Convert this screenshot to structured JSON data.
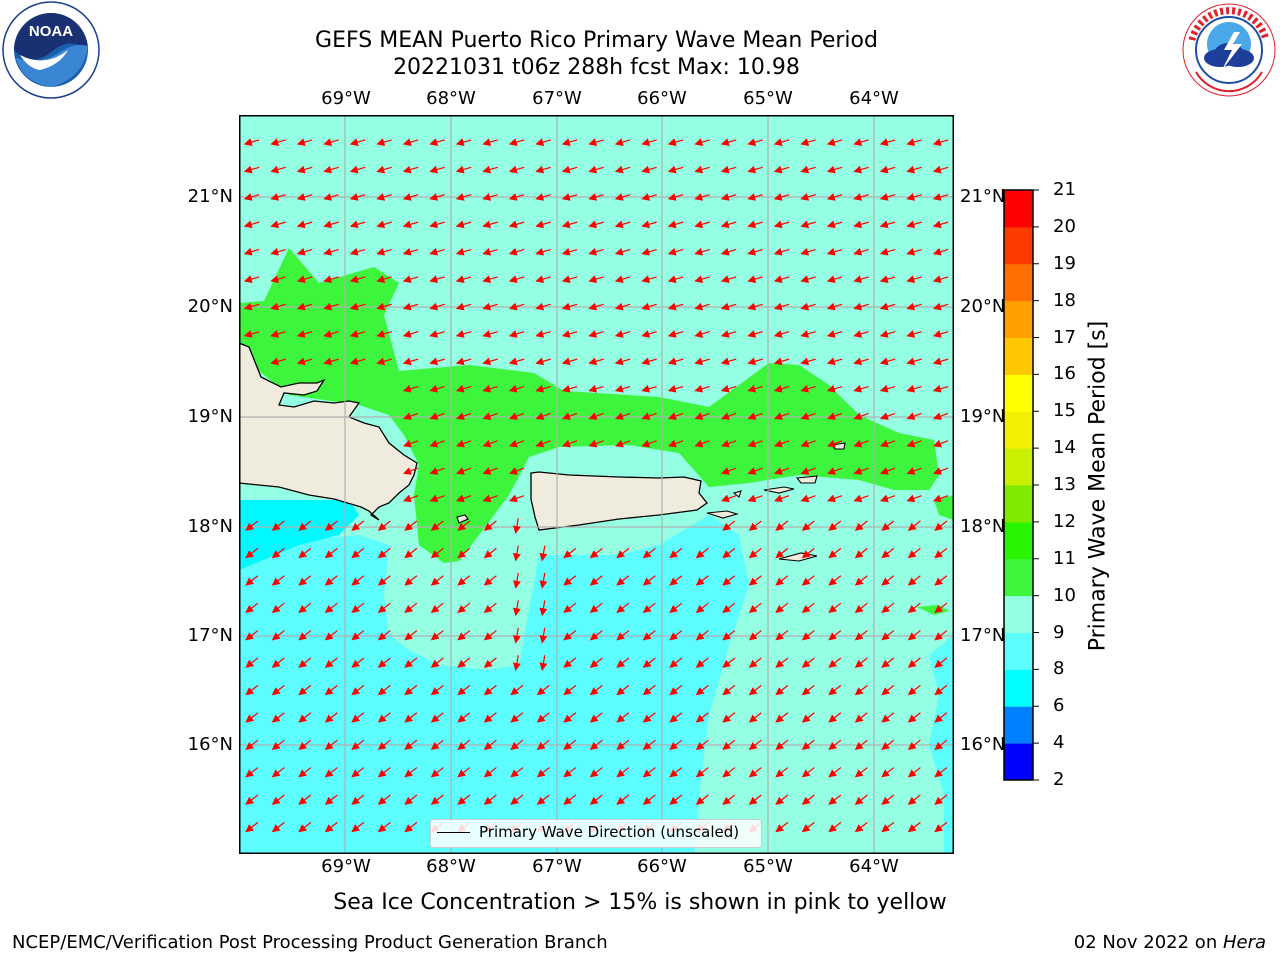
{
  "title": {
    "line1": "GEFS MEAN Puerto Rico Primary Wave Mean Period",
    "line2": "20221031 t06z 288h fcst   Max: 10.98"
  },
  "logos": {
    "noaa_text": "NOAA",
    "noaa_ring_text": "NATIONAL OCEANIC AND ATMOSPHERIC ADMINISTRATION · U.S. DEPARTMENT OF COMMERCE",
    "nws_ring_text": "NATIONAL WEATHER SERVICE"
  },
  "map": {
    "lon_labels": [
      "69°W",
      "68°W",
      "67°W",
      "66°W",
      "65°W",
      "64°W"
    ],
    "lat_labels": [
      "21°N",
      "20°N",
      "19°N",
      "18°N",
      "17°N",
      "16°N"
    ],
    "legend": "Primary Wave Direction (unscaled)",
    "colors": {
      "period_8_9": "#5dfdfd",
      "period_9_10": "#94ffe3",
      "period_10_11": "#3df53d",
      "land": "#efecdd",
      "arrows": "#ff0000",
      "gridlines": "#b0b0b0"
    }
  },
  "colorbar": {
    "label": "Primary Wave Mean Period [s]",
    "ticks": [
      "2",
      "4",
      "6",
      "8",
      "9",
      "10",
      "11",
      "12",
      "13",
      "14",
      "15",
      "16",
      "17",
      "18",
      "19",
      "20",
      "21"
    ],
    "colors": [
      "#0000ff",
      "#0080ff",
      "#00ffff",
      "#5dfdfd",
      "#94ffe3",
      "#3df53d",
      "#2af500",
      "#7fea00",
      "#c8f000",
      "#f2f000",
      "#ffff00",
      "#ffc800",
      "#ffa000",
      "#ff6e00",
      "#ff3c00",
      "#ff0000"
    ]
  },
  "bottom_note": "Sea Ice Concentration > 15% is shown in pink to yellow",
  "footer": {
    "left": "NCEP/EMC/Verification Post Processing Product Generation Branch",
    "right_date": "02 Nov 2022 on ",
    "right_machine": "Hera"
  }
}
